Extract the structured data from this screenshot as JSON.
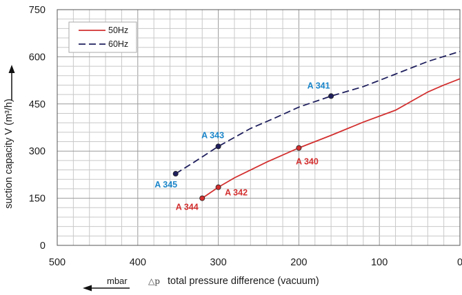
{
  "chart_data": {
    "type": "line",
    "xlabel": "total pressure difference (vacuum)",
    "xunit": "mbar",
    "xsymbol": "△p",
    "ylabel": "suction capacity V (m³/h)",
    "xlim": [
      500,
      0
    ],
    "ylim": [
      0,
      750
    ],
    "x_ticks": [
      500,
      400,
      300,
      200,
      100,
      0
    ],
    "y_ticks": [
      0,
      150,
      300,
      450,
      600,
      750
    ],
    "grid": true,
    "legend_position": "top-left",
    "series": [
      {
        "name": "50Hz",
        "style": "solid",
        "color": "#d32f2f",
        "x": [
          320,
          300,
          280,
          240,
          200,
          160,
          120,
          80,
          40,
          20,
          0
        ],
        "y": [
          150,
          185,
          215,
          265,
          310,
          350,
          392,
          430,
          488,
          510,
          530
        ],
        "points": [
          {
            "label": "A 344",
            "x": 320,
            "y": 150
          },
          {
            "label": "A 342",
            "x": 300,
            "y": 185
          },
          {
            "label": "A 340",
            "x": 200,
            "y": 310
          }
        ]
      },
      {
        "name": "60Hz",
        "style": "dashed",
        "color": "#1f1f5e",
        "x": [
          353,
          330,
          300,
          260,
          230,
          200,
          160,
          120,
          80,
          40,
          0
        ],
        "y": [
          228,
          265,
          315,
          372,
          405,
          440,
          475,
          505,
          545,
          585,
          617
        ],
        "points": [
          {
            "label": "A 345",
            "x": 353,
            "y": 228
          },
          {
            "label": "A 343",
            "x": 300,
            "y": 315
          },
          {
            "label": "A 341",
            "x": 160,
            "y": 475
          }
        ]
      }
    ],
    "label_colors": {
      "50Hz": "#d32f2f",
      "60Hz": "#1a85c9"
    }
  }
}
